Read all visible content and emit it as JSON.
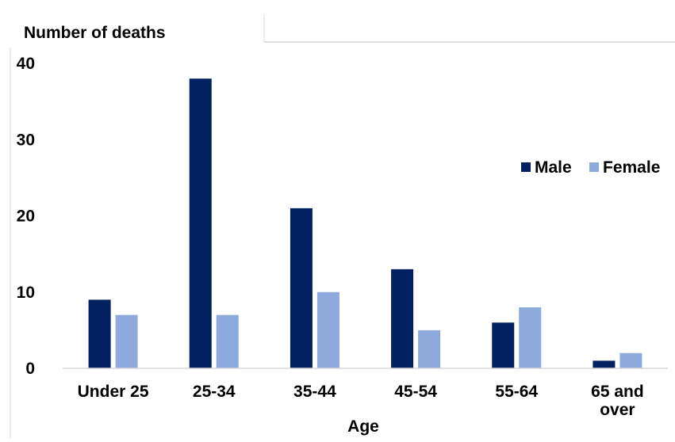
{
  "chart_data": {
    "type": "bar",
    "ylabel": "Number of deaths",
    "xlabel": "Age",
    "categories": [
      "Under 25",
      "25-34",
      "35-44",
      "45-54",
      "55-64",
      "65 and over"
    ],
    "category_lines": [
      [
        "Under 25"
      ],
      [
        "25-34"
      ],
      [
        "35-44"
      ],
      [
        "45-54"
      ],
      [
        "55-64"
      ],
      [
        "65 and",
        "over"
      ]
    ],
    "series": [
      {
        "name": "Male",
        "values": [
          9,
          38,
          21,
          13,
          6,
          1
        ],
        "color": "#002060"
      },
      {
        "name": "Female",
        "values": [
          7,
          7,
          10,
          5,
          8,
          2
        ],
        "color": "#8EA9DB"
      }
    ],
    "ylim": [
      0,
      40
    ],
    "yticks": [
      0,
      10,
      20,
      30,
      40
    ],
    "grid": false,
    "legend_position": "right"
  }
}
